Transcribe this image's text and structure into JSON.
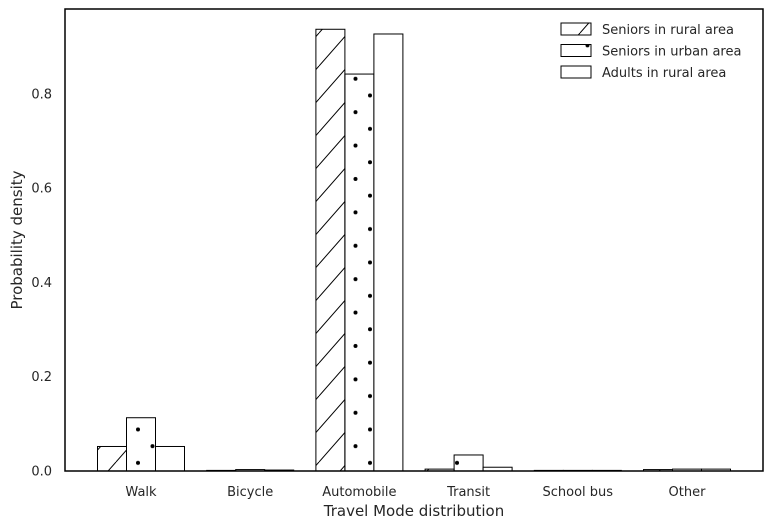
{
  "chart_data": {
    "type": "bar",
    "title": "",
    "xlabel": "Travel Mode distribution",
    "ylabel": "Probability density",
    "categories": [
      "Walk",
      "Bicycle",
      "Automobile",
      "Transit",
      "School bus",
      "Other"
    ],
    "series": [
      {
        "name": "Seniors in rural area",
        "hatch": "diagonal",
        "values": [
          0.052,
          0.001,
          0.937,
          0.004,
          0.0,
          0.003
        ]
      },
      {
        "name": "Seniors in urban area",
        "hatch": "dots",
        "values": [
          0.113,
          0.003,
          0.842,
          0.034,
          0.0,
          0.004
        ]
      },
      {
        "name": "Adults in rural area",
        "hatch": "none",
        "values": [
          0.052,
          0.002,
          0.927,
          0.008,
          0.0,
          0.004
        ]
      }
    ],
    "ylim": [
      0,
      0.98
    ],
    "yticks": [
      0.0,
      0.2,
      0.4,
      0.6,
      0.8
    ],
    "ytick_labels": [
      "0.0",
      "0.2",
      "0.4",
      "0.6",
      "0.8"
    ],
    "grid": false,
    "legend_position": "top-right",
    "colors": {
      "bar_fill": "#ffffff",
      "bar_edge": "#000000",
      "axis": "#000000",
      "text": "#262626"
    }
  }
}
